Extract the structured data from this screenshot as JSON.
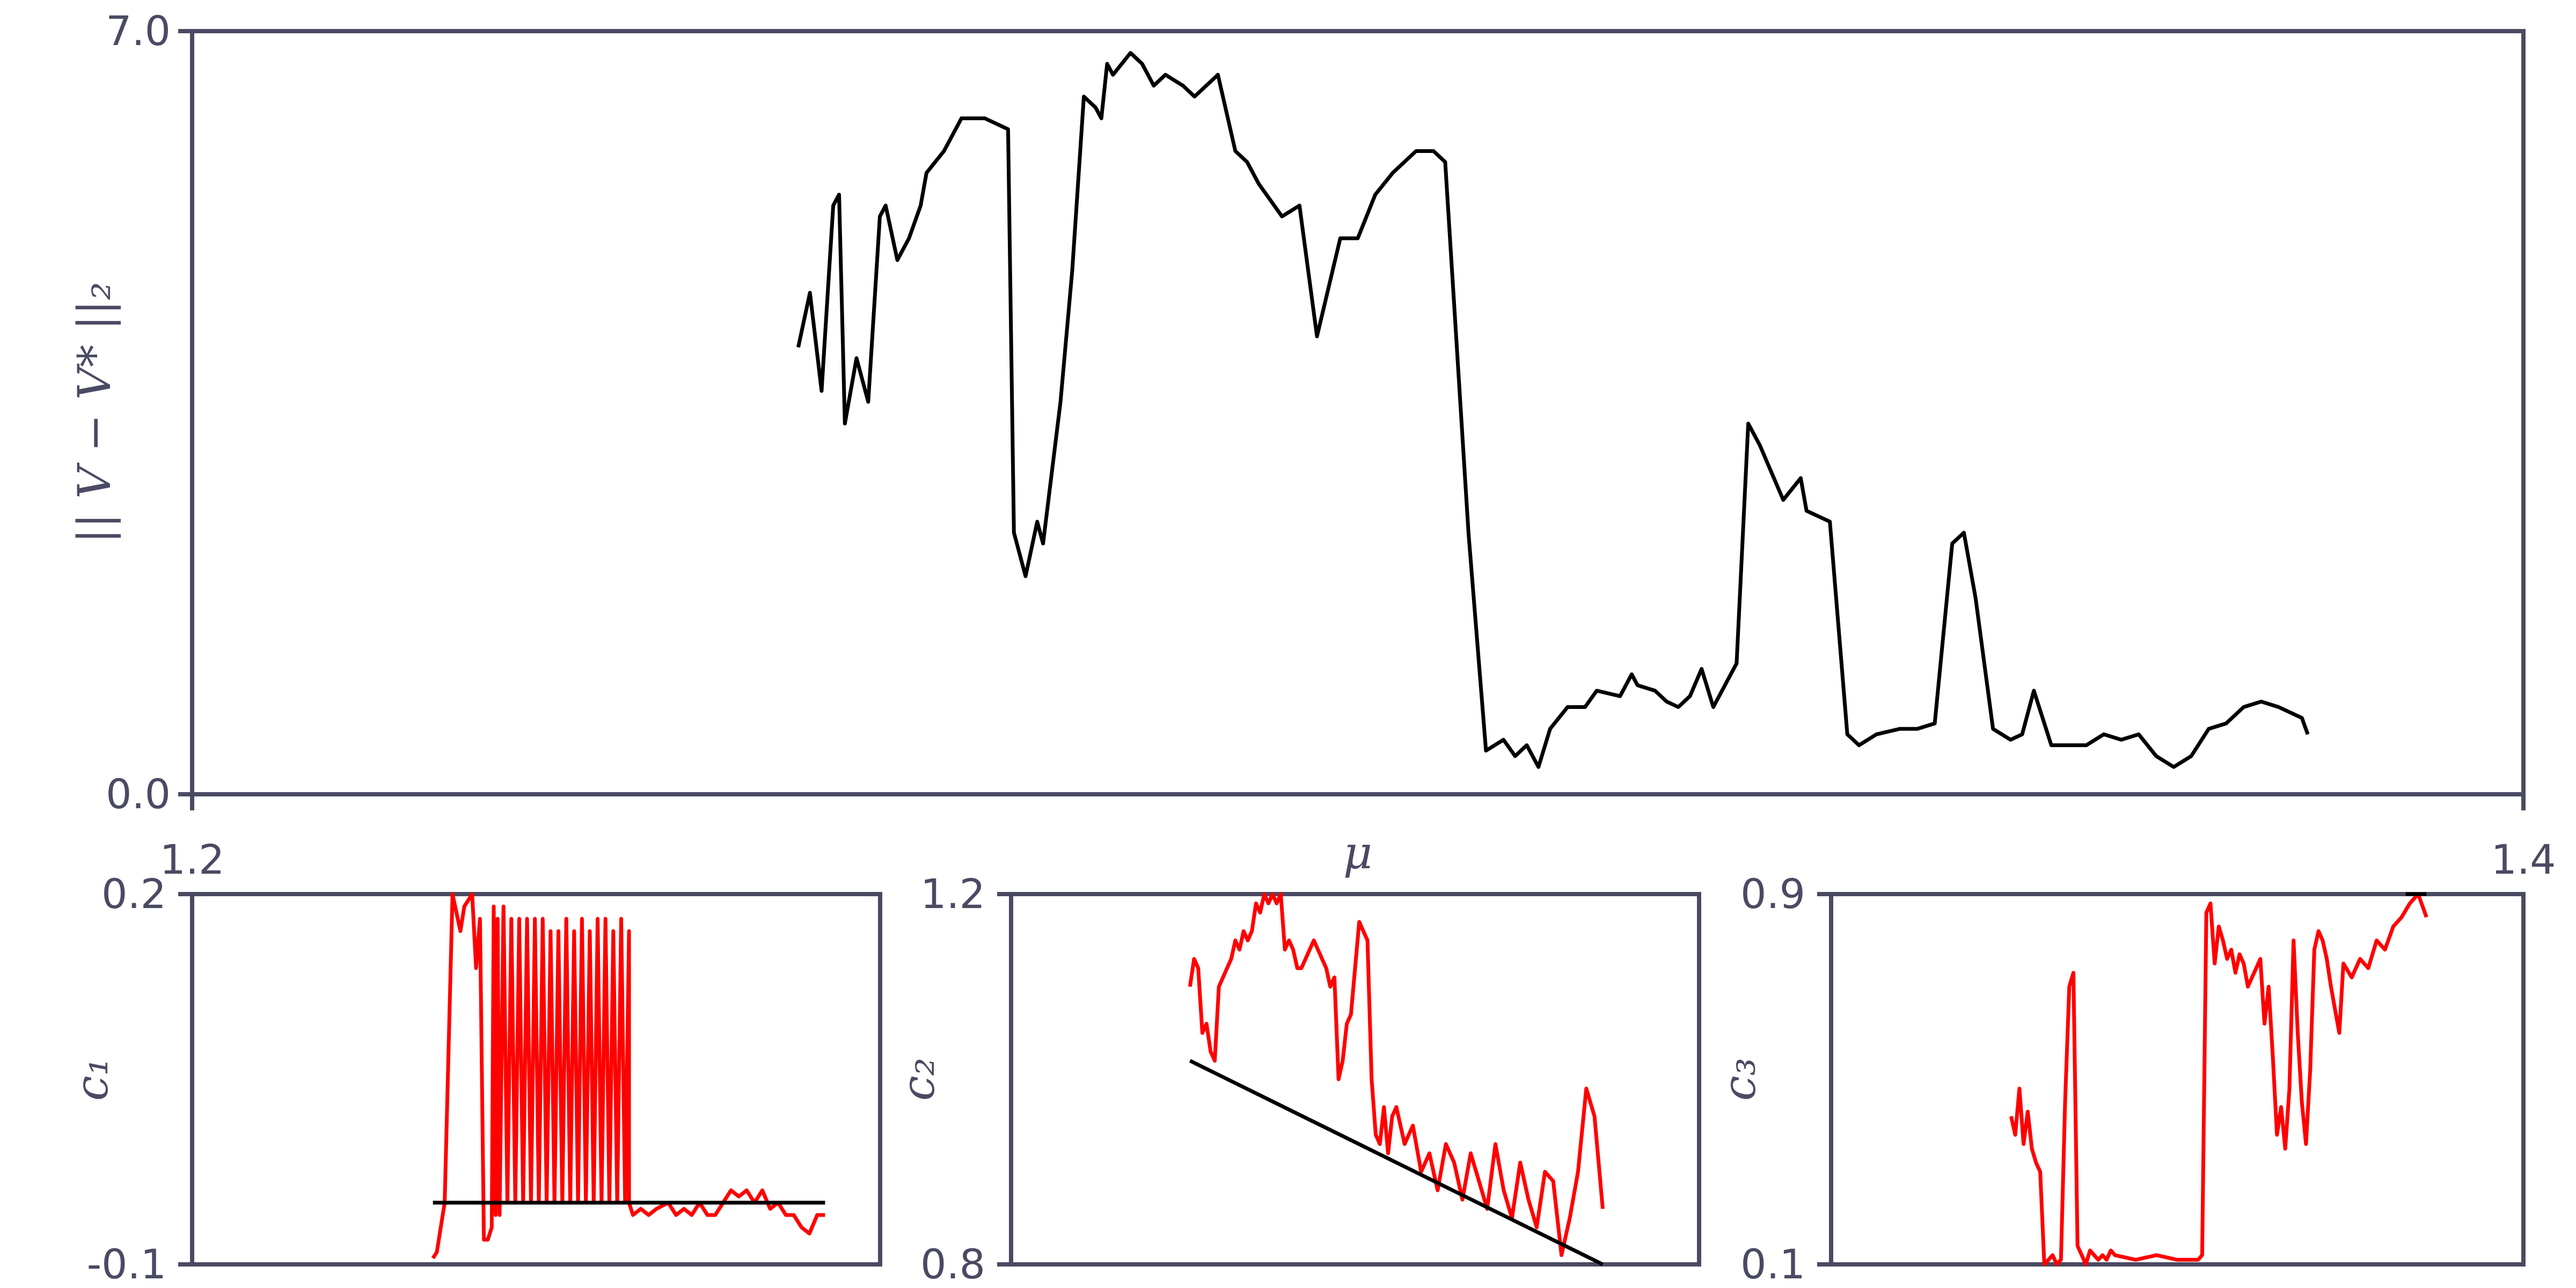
{
  "chart_data": [
    {
      "type": "line",
      "xlabel": "μ",
      "ylabel": "|| V − V* ||₂",
      "xlim": [
        1.2,
        1.4
      ],
      "ylim": [
        0.0,
        7.0
      ],
      "x_ticks": [
        "1.2",
        "1.4"
      ],
      "y_ticks": [
        "0.0",
        "7.0"
      ],
      "grid": false,
      "colors": {
        "series": "#000000",
        "axes": "#4a4a63"
      },
      "series": [
        {
          "x": [
            1.252,
            1.253,
            1.254,
            1.255,
            1.2555,
            1.256,
            1.257,
            1.258,
            1.259,
            1.2595,
            1.2605,
            1.2615,
            1.2625,
            1.263,
            1.2645,
            1.266,
            1.268,
            1.27,
            1.2705,
            1.2715,
            1.2725,
            1.273,
            1.2745,
            1.2755,
            1.2765,
            1.2775,
            1.278,
            1.2785,
            1.279,
            1.2805,
            1.2815,
            1.2825,
            1.2835,
            1.285,
            1.286,
            1.288,
            1.2895,
            1.2905,
            1.2915,
            1.2935,
            1.295,
            1.2965,
            1.2985,
            1.3,
            1.3015,
            1.303,
            1.305,
            1.3065,
            1.3075,
            1.3095,
            1.311,
            1.3125,
            1.3135,
            1.3145,
            1.3155,
            1.3165,
            1.318,
            1.3195,
            1.3205,
            1.3225,
            1.3235,
            1.324,
            1.3255,
            1.3265,
            1.3275,
            1.3285,
            1.3295,
            1.3305,
            1.3325,
            1.3335,
            1.3345,
            1.3365,
            1.338,
            1.3385,
            1.3405,
            1.342,
            1.343,
            1.3445,
            1.3465,
            1.348,
            1.3495,
            1.351,
            1.352,
            1.353,
            1.3545,
            1.356,
            1.357,
            1.358,
            1.3595,
            1.361,
            1.3625,
            1.364,
            1.3655,
            1.367,
            1.3685,
            1.37,
            1.3715,
            1.373,
            1.3745,
            1.376,
            1.3775,
            1.379,
            1.381,
            1.3815
          ],
          "y": [
            4.1,
            4.6,
            3.7,
            5.4,
            5.5,
            3.4,
            4.0,
            3.6,
            5.3,
            5.4,
            4.9,
            5.1,
            5.4,
            5.7,
            5.9,
            6.2,
            6.2,
            6.1,
            2.4,
            2.0,
            2.5,
            2.3,
            3.6,
            4.8,
            6.4,
            6.3,
            6.2,
            6.7,
            6.6,
            6.8,
            6.7,
            6.5,
            6.6,
            6.5,
            6.4,
            6.6,
            5.9,
            5.8,
            5.6,
            5.3,
            5.4,
            4.2,
            5.1,
            5.1,
            5.5,
            5.7,
            5.9,
            5.9,
            5.8,
            2.4,
            0.4,
            0.5,
            0.35,
            0.45,
            0.25,
            0.6,
            0.8,
            0.8,
            0.95,
            0.9,
            1.1,
            1.0,
            0.95,
            0.85,
            0.8,
            0.9,
            1.15,
            0.8,
            1.2,
            3.4,
            3.2,
            2.7,
            2.9,
            2.6,
            2.5,
            0.55,
            0.45,
            0.55,
            0.6,
            0.6,
            0.65,
            2.3,
            2.4,
            1.8,
            0.6,
            0.5,
            0.55,
            0.95,
            0.45,
            0.45,
            0.45,
            0.55,
            0.5,
            0.55,
            0.35,
            0.25,
            0.35,
            0.6,
            0.65,
            0.8,
            0.85,
            0.8,
            0.7,
            0.55
          ]
        }
      ]
    },
    {
      "type": "line",
      "ylabel": "c₁",
      "ylim": [
        -0.1,
        0.2
      ],
      "y_ticks": [
        "-0.1",
        "0.2"
      ],
      "grid": false,
      "colors": {
        "red": "#ff0000",
        "black": "#000000"
      },
      "series": [
        {
          "color": "red",
          "x": [
            0.0,
            0.01,
            0.03,
            0.05,
            0.07,
            0.08,
            0.1,
            0.11,
            0.12,
            0.13,
            0.14,
            0.15,
            0.155,
            0.16,
            0.165,
            0.17,
            0.18,
            0.19,
            0.2,
            0.21,
            0.22,
            0.23,
            0.24,
            0.25,
            0.26,
            0.27,
            0.28,
            0.29,
            0.3,
            0.31,
            0.32,
            0.33,
            0.34,
            0.35,
            0.36,
            0.37,
            0.38,
            0.39,
            0.4,
            0.41,
            0.42,
            0.43,
            0.44,
            0.45,
            0.46,
            0.47,
            0.48,
            0.49,
            0.5,
            0.5,
            0.51,
            0.53,
            0.55,
            0.57,
            0.6,
            0.62,
            0.64,
            0.66,
            0.68,
            0.7,
            0.72,
            0.74,
            0.76,
            0.78,
            0.8,
            0.82,
            0.84,
            0.86,
            0.88,
            0.9,
            0.92,
            0.94,
            0.96,
            0.98,
            1.0
          ],
          "y": [
            -0.095,
            -0.09,
            -0.05,
            0.2,
            0.17,
            0.19,
            0.2,
            0.14,
            0.18,
            -0.08,
            -0.08,
            -0.07,
            0.19,
            -0.06,
            0.18,
            -0.06,
            0.19,
            -0.05,
            0.18,
            -0.05,
            0.18,
            -0.05,
            0.18,
            -0.05,
            0.18,
            -0.05,
            0.18,
            -0.05,
            0.17,
            -0.05,
            0.17,
            -0.05,
            0.18,
            -0.05,
            0.17,
            -0.05,
            0.18,
            -0.05,
            0.17,
            -0.05,
            0.18,
            -0.05,
            0.18,
            -0.05,
            0.17,
            -0.05,
            0.18,
            -0.05,
            0.17,
            -0.05,
            -0.06,
            -0.055,
            -0.06,
            -0.055,
            -0.05,
            -0.06,
            -0.055,
            -0.06,
            -0.05,
            -0.06,
            -0.06,
            -0.05,
            -0.04,
            -0.045,
            -0.04,
            -0.05,
            -0.04,
            -0.055,
            -0.05,
            -0.06,
            -0.06,
            -0.07,
            -0.075,
            -0.06,
            -0.06
          ]
        },
        {
          "color": "black",
          "x": [
            0.0,
            1.0
          ],
          "y": [
            -0.05,
            -0.05
          ]
        }
      ]
    },
    {
      "type": "line",
      "ylabel": "c₂",
      "ylim": [
        0.8,
        1.2
      ],
      "y_ticks": [
        "0.8",
        "1.2"
      ],
      "grid": false,
      "colors": {
        "red": "#ff0000",
        "black": "#000000"
      },
      "series": [
        {
          "color": "red",
          "x": [
            0.0,
            0.01,
            0.02,
            0.03,
            0.04,
            0.05,
            0.06,
            0.07,
            0.08,
            0.09,
            0.1,
            0.11,
            0.12,
            0.13,
            0.14,
            0.15,
            0.16,
            0.17,
            0.18,
            0.19,
            0.2,
            0.21,
            0.22,
            0.23,
            0.24,
            0.25,
            0.26,
            0.27,
            0.28,
            0.29,
            0.3,
            0.31,
            0.32,
            0.33,
            0.34,
            0.35,
            0.36,
            0.37,
            0.38,
            0.39,
            0.4,
            0.41,
            0.42,
            0.43,
            0.44,
            0.45,
            0.46,
            0.47,
            0.48,
            0.49,
            0.5,
            0.52,
            0.54,
            0.56,
            0.58,
            0.6,
            0.62,
            0.64,
            0.66,
            0.68,
            0.7,
            0.72,
            0.74,
            0.76,
            0.78,
            0.8,
            0.82,
            0.84,
            0.86,
            0.88,
            0.9,
            0.92,
            0.94,
            0.96,
            0.98,
            1.0
          ],
          "y": [
            1.1,
            1.13,
            1.12,
            1.05,
            1.06,
            1.03,
            1.02,
            1.1,
            1.11,
            1.12,
            1.13,
            1.15,
            1.14,
            1.16,
            1.15,
            1.16,
            1.19,
            1.18,
            1.2,
            1.19,
            1.2,
            1.19,
            1.2,
            1.14,
            1.15,
            1.14,
            1.12,
            1.12,
            1.13,
            1.14,
            1.15,
            1.14,
            1.13,
            1.12,
            1.1,
            1.11,
            1.0,
            1.02,
            1.06,
            1.07,
            1.12,
            1.17,
            1.16,
            1.15,
            1.0,
            0.94,
            0.93,
            0.97,
            0.92,
            0.96,
            0.97,
            0.93,
            0.95,
            0.9,
            0.92,
            0.88,
            0.93,
            0.91,
            0.87,
            0.92,
            0.89,
            0.86,
            0.93,
            0.88,
            0.85,
            0.91,
            0.87,
            0.84,
            0.9,
            0.89,
            0.81,
            0.85,
            0.9,
            0.99,
            0.96,
            0.86
          ]
        },
        {
          "color": "black",
          "x": [
            0.0,
            1.0
          ],
          "y": [
            1.02,
            0.8
          ]
        }
      ]
    },
    {
      "type": "line",
      "ylabel": "c₃",
      "ylim": [
        0.1,
        0.9
      ],
      "y_ticks": [
        "0.1",
        "0.9"
      ],
      "grid": false,
      "colors": {
        "red": "#ff0000",
        "black": "#000000"
      },
      "series": [
        {
          "color": "red",
          "x": [
            0.0,
            0.01,
            0.02,
            0.03,
            0.04,
            0.05,
            0.06,
            0.07,
            0.08,
            0.09,
            0.1,
            0.11,
            0.12,
            0.13,
            0.14,
            0.15,
            0.16,
            0.17,
            0.18,
            0.19,
            0.2,
            0.21,
            0.22,
            0.23,
            0.24,
            0.25,
            0.3,
            0.35,
            0.4,
            0.45,
            0.46,
            0.47,
            0.48,
            0.49,
            0.5,
            0.51,
            0.52,
            0.53,
            0.54,
            0.55,
            0.56,
            0.57,
            0.58,
            0.59,
            0.6,
            0.61,
            0.62,
            0.63,
            0.64,
            0.65,
            0.66,
            0.67,
            0.68,
            0.69,
            0.7,
            0.71,
            0.72,
            0.73,
            0.74,
            0.75,
            0.76,
            0.77,
            0.78,
            0.79,
            0.8,
            0.82,
            0.84,
            0.86,
            0.88,
            0.9,
            0.92,
            0.94,
            0.96,
            0.98,
            1.0
          ],
          "y": [
            0.42,
            0.38,
            0.48,
            0.36,
            0.43,
            0.35,
            0.32,
            0.3,
            0.1,
            0.11,
            0.12,
            0.1,
            0.11,
            0.45,
            0.7,
            0.73,
            0.14,
            0.12,
            0.1,
            0.13,
            0.12,
            0.11,
            0.12,
            0.11,
            0.13,
            0.12,
            0.11,
            0.12,
            0.11,
            0.11,
            0.12,
            0.86,
            0.88,
            0.75,
            0.83,
            0.8,
            0.76,
            0.78,
            0.73,
            0.77,
            0.75,
            0.7,
            0.72,
            0.74,
            0.76,
            0.62,
            0.7,
            0.55,
            0.38,
            0.44,
            0.35,
            0.48,
            0.8,
            0.6,
            0.45,
            0.36,
            0.52,
            0.78,
            0.82,
            0.8,
            0.76,
            0.7,
            0.65,
            0.6,
            0.75,
            0.72,
            0.76,
            0.74,
            0.8,
            0.78,
            0.83,
            0.85,
            0.88,
            0.9,
            0.85
          ]
        },
        {
          "color": "black",
          "x": [
            0.95,
            1.0
          ],
          "y": [
            0.9,
            0.9
          ]
        }
      ]
    }
  ]
}
